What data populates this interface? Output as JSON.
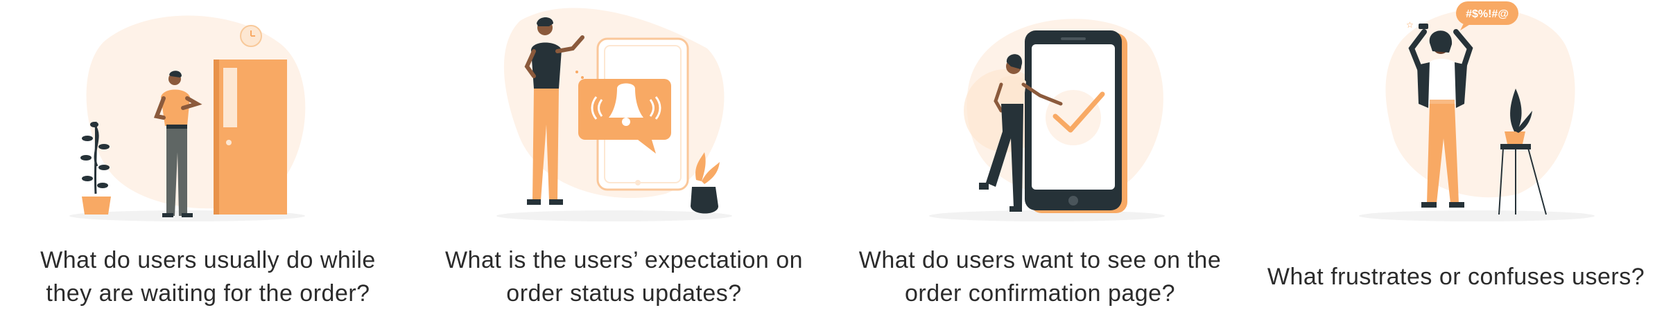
{
  "colors": {
    "accent": "#F8A964",
    "accent_light": "#FDE7D2",
    "blob": "#FEF2E8",
    "dark": "#263238",
    "text": "#2b2b2b"
  },
  "panels": [
    {
      "illustration": "person-waiting-at-door",
      "caption_lines": [
        "What do users usually do while",
        "they are waiting for the order?"
      ]
    },
    {
      "illustration": "person-with-phone-notification-bell",
      "caption_lines": [
        "What is the users’ expectation on",
        "order status updates?"
      ]
    },
    {
      "illustration": "person-with-phone-checkmark",
      "caption_lines": [
        "What do users want to see on the",
        "order confirmation page?"
      ]
    },
    {
      "illustration": "frustrated-person-with-symbols",
      "symbols_text": "#$%!#@",
      "caption_lines": [
        "What frustrates or confuses users?"
      ]
    }
  ]
}
